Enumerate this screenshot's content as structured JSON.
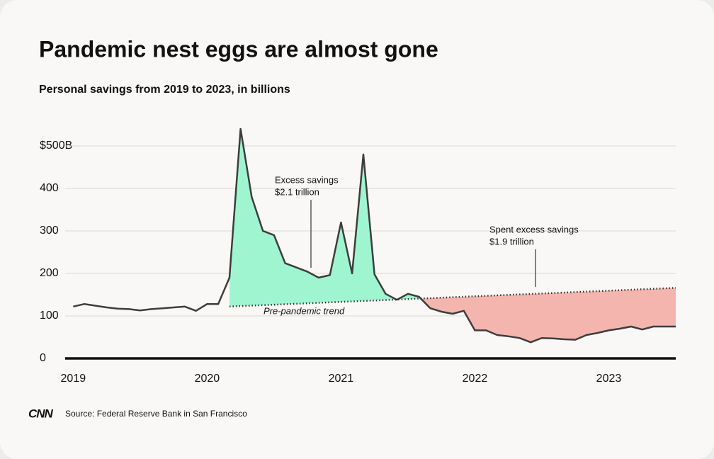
{
  "chart_data": {
    "type": "line",
    "title": "Pandemic nest eggs are almost gone",
    "subtitle": "Personal savings from 2019 to 2023, in billions",
    "x": [
      2019,
      2019.083,
      2019.167,
      2019.25,
      2019.333,
      2019.417,
      2019.5,
      2019.583,
      2019.667,
      2019.75,
      2019.833,
      2019.917,
      2020,
      2020.083,
      2020.167,
      2020.25,
      2020.333,
      2020.417,
      2020.5,
      2020.583,
      2020.667,
      2020.75,
      2020.833,
      2020.917,
      2021,
      2021.083,
      2021.167,
      2021.25,
      2021.333,
      2021.417,
      2021.5,
      2021.583,
      2021.667,
      2021.75,
      2021.833,
      2021.917,
      2022,
      2022.083,
      2022.167,
      2022.25,
      2022.333,
      2022.417,
      2022.5,
      2022.583,
      2022.667,
      2022.75,
      2022.833,
      2022.917,
      2023,
      2023.083,
      2023.167,
      2023.25,
      2023.333,
      2023.417,
      2023.5
    ],
    "series": [
      {
        "color": "#3d3d3d",
        "values": [
          122,
          128,
          124,
          120,
          117,
          116,
          113,
          116,
          118,
          120,
          122,
          112,
          128,
          128,
          190,
          540,
          380,
          300,
          290,
          224,
          214,
          204,
          190,
          196,
          320,
          200,
          480,
          198,
          152,
          138,
          152,
          145,
          118,
          110,
          105,
          112,
          66,
          66,
          55,
          52,
          48,
          38,
          48,
          47,
          45,
          44,
          55,
          60,
          66,
          70,
          75,
          68,
          75,
          75,
          75
        ]
      },
      {
        "name": "Pre-pandemic trend",
        "color": "#333333",
        "x": [
          2020.167,
          2023.5
        ],
        "values": [
          122,
          166
        ]
      }
    ],
    "fill_colors": {
      "excess": "#9ff5cf",
      "spent": "#f4b5ae"
    },
    "annotations": [
      {
        "lines": [
          "Excess savings",
          "$2.1 trillion"
        ]
      },
      {
        "lines": [
          "Spent excess savings",
          "$1.9 trillion"
        ]
      }
    ],
    "xlim": [
      2018.94,
      2023.5
    ],
    "xticks": [
      2019,
      2020,
      2021,
      2022,
      2023
    ],
    "ylim": [
      0,
      500
    ],
    "yticks": [
      0,
      100,
      200,
      300,
      400,
      {
        "value": 500,
        "label": "$500B"
      }
    ],
    "grid": true,
    "source": "Source: Federal Reserve Bank in San Francisco",
    "logo": "CNN"
  }
}
